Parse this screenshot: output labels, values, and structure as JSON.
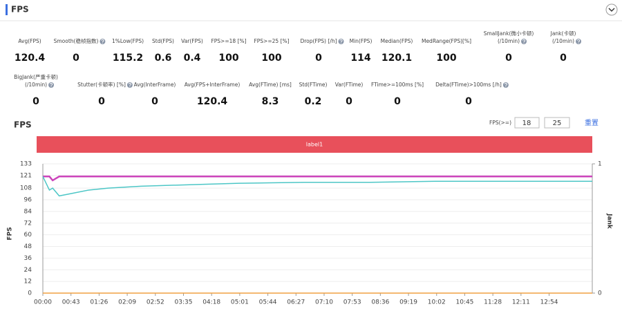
{
  "header": {
    "title": "FPS"
  },
  "stats": {
    "row1": [
      {
        "lines": [
          "Avg(FPS)"
        ],
        "value": 120.4
      },
      {
        "lines": [
          "Smooth(稳帧指数)"
        ],
        "value": 0,
        "help": true
      },
      {
        "lines": [
          "1%Low(FPS)"
        ],
        "value": 115.2
      },
      {
        "lines": [
          "Std(FPS)"
        ],
        "value": 0.6
      },
      {
        "lines": [
          "Var(FPS)"
        ],
        "value": 0.4
      },
      {
        "lines": [
          "FPS>=18 [%]"
        ],
        "value": 100
      },
      {
        "lines": [
          "FPS>=25 [%]"
        ],
        "value": 100
      },
      {
        "lines": [
          "Drop(FPS) [/h]"
        ],
        "value": 0,
        "help": true
      },
      {
        "lines": [
          "Min(FPS)"
        ],
        "value": 114
      },
      {
        "lines": [
          "Median(FPS)"
        ],
        "value": 120.1
      },
      {
        "lines": [
          "MedRange(FPS)[%]"
        ],
        "value": 100
      },
      {
        "lines": [
          "SmallJank(微小卡顿)",
          "(/10min)"
        ],
        "value": 0,
        "help": true
      },
      {
        "lines": [
          "Jank(卡顿)",
          "(/10min)"
        ],
        "value": 0,
        "help": true
      }
    ],
    "row2": [
      {
        "lines": [
          "BigJank(严重卡顿)",
          "(/10min)"
        ],
        "value": 0,
        "help": true
      },
      {
        "lines": [
          "Stutter(卡顿率) [%]"
        ],
        "value": 0,
        "help": true
      },
      {
        "lines": [
          "Avg(InterFrame)"
        ],
        "value": 0
      },
      {
        "lines": [
          "Avg(FPS+InterFrame)"
        ],
        "value": 120.4
      },
      {
        "lines": [
          "Avg(FTime) [ms]"
        ],
        "value": 8.3
      },
      {
        "lines": [
          "Std(FTime)"
        ],
        "value": 0.2
      },
      {
        "lines": [
          "Var(FTime)"
        ],
        "value": 0
      },
      {
        "lines": [
          "FTime>=100ms [%]"
        ],
        "value": 0
      },
      {
        "lines": [
          "Delta(FTime)>100ms [/h]"
        ],
        "value": 0,
        "help": true
      }
    ]
  },
  "controls": {
    "label": "FPS(>=)",
    "thresholds": [
      18,
      25
    ],
    "reset": "重置"
  },
  "chart_data": {
    "type": "line",
    "title": "FPS",
    "band_label": "label1",
    "band_color": "#e8505b",
    "y_label": "FPS",
    "y2_label": "Jank",
    "x": [
      0,
      10,
      15,
      25,
      40,
      70,
      100,
      150,
      200,
      250,
      300,
      400,
      500,
      600,
      700,
      800,
      840
    ],
    "series": [
      {
        "color": "#cc44bb",
        "values": [
          120,
          120,
          116,
          120,
          120,
          120,
          120,
          120,
          120,
          120,
          120,
          120,
          120,
          120,
          120,
          120,
          120
        ]
      },
      {
        "color": "#4cc6c6",
        "values": [
          120,
          106,
          108,
          100,
          102,
          106,
          108,
          110,
          111,
          112,
          113,
          114,
          114,
          115,
          115,
          115,
          115
        ]
      },
      {
        "color": "#f0a040",
        "axis": "y2",
        "values": [
          0,
          0,
          0,
          0,
          0,
          0,
          0,
          0,
          0,
          0,
          0,
          0,
          0,
          0,
          0,
          0,
          0
        ]
      }
    ],
    "xlim": [
      0,
      840
    ],
    "xticks": [
      {
        "value": 0,
        "label": "00:00"
      },
      {
        "value": 43,
        "label": "00:43"
      },
      {
        "value": 86,
        "label": "01:26"
      },
      {
        "value": 129,
        "label": "02:09"
      },
      {
        "value": 172,
        "label": "02:52"
      },
      {
        "value": 215,
        "label": "03:35"
      },
      {
        "value": 258,
        "label": "04:18"
      },
      {
        "value": 301,
        "label": "05:01"
      },
      {
        "value": 344,
        "label": "05:44"
      },
      {
        "value": 387,
        "label": "06:27"
      },
      {
        "value": 430,
        "label": "07:10"
      },
      {
        "value": 473,
        "label": "07:53"
      },
      {
        "value": 516,
        "label": "08:36"
      },
      {
        "value": 559,
        "label": "09:19"
      },
      {
        "value": 602,
        "label": "10:02"
      },
      {
        "value": 645,
        "label": "10:45"
      },
      {
        "value": 688,
        "label": "11:28"
      },
      {
        "value": 731,
        "label": "12:11"
      },
      {
        "value": 774,
        "label": "12:54"
      }
    ],
    "ylim": [
      0,
      133
    ],
    "yticks": [
      0,
      12,
      24,
      36,
      48,
      60,
      72,
      84,
      96,
      108,
      121,
      133
    ],
    "y2lim": [
      0,
      1
    ],
    "y2ticks": [
      0,
      1
    ],
    "grid": true
  }
}
